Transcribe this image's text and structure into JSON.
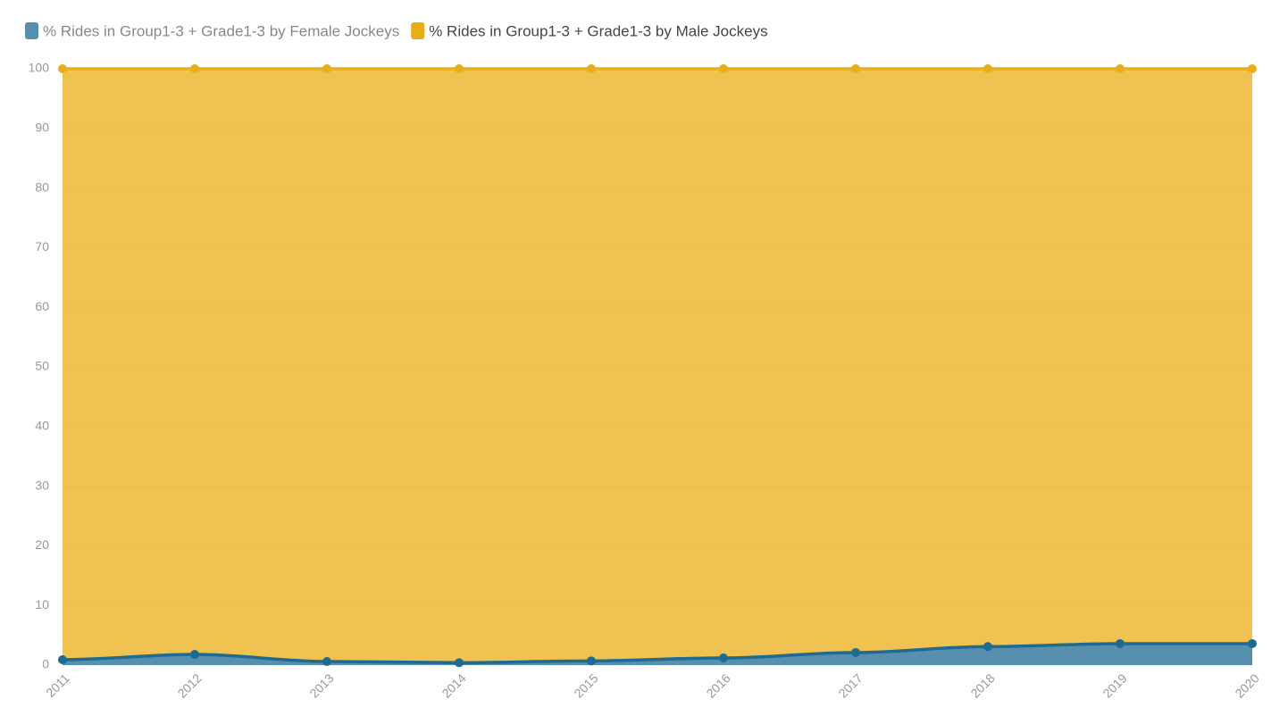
{
  "chart_data": {
    "type": "area",
    "stacked": true,
    "categories": [
      "2011",
      "2012",
      "2013",
      "2014",
      "2015",
      "2016",
      "2017",
      "2018",
      "2019",
      "2020"
    ],
    "series": [
      {
        "name": "% Rides in Group1-3 + Grade1-3 by Female Jockeys",
        "color": "#1f6a93",
        "values": [
          0.9,
          1.8,
          0.6,
          0.4,
          0.7,
          1.2,
          2.1,
          3.1,
          3.6,
          3.6
        ]
      },
      {
        "name": "% Rides in Group1-3 + Grade1-3 by Male Jockeys",
        "color": "#e9ad17",
        "values": [
          99.1,
          98.2,
          99.4,
          99.6,
          99.3,
          98.8,
          97.9,
          96.9,
          96.4,
          96.4
        ]
      }
    ],
    "ylim": [
      0,
      100
    ],
    "yticks": [
      0,
      10,
      20,
      30,
      40,
      50,
      60,
      70,
      80,
      90,
      100
    ],
    "grid": true
  }
}
